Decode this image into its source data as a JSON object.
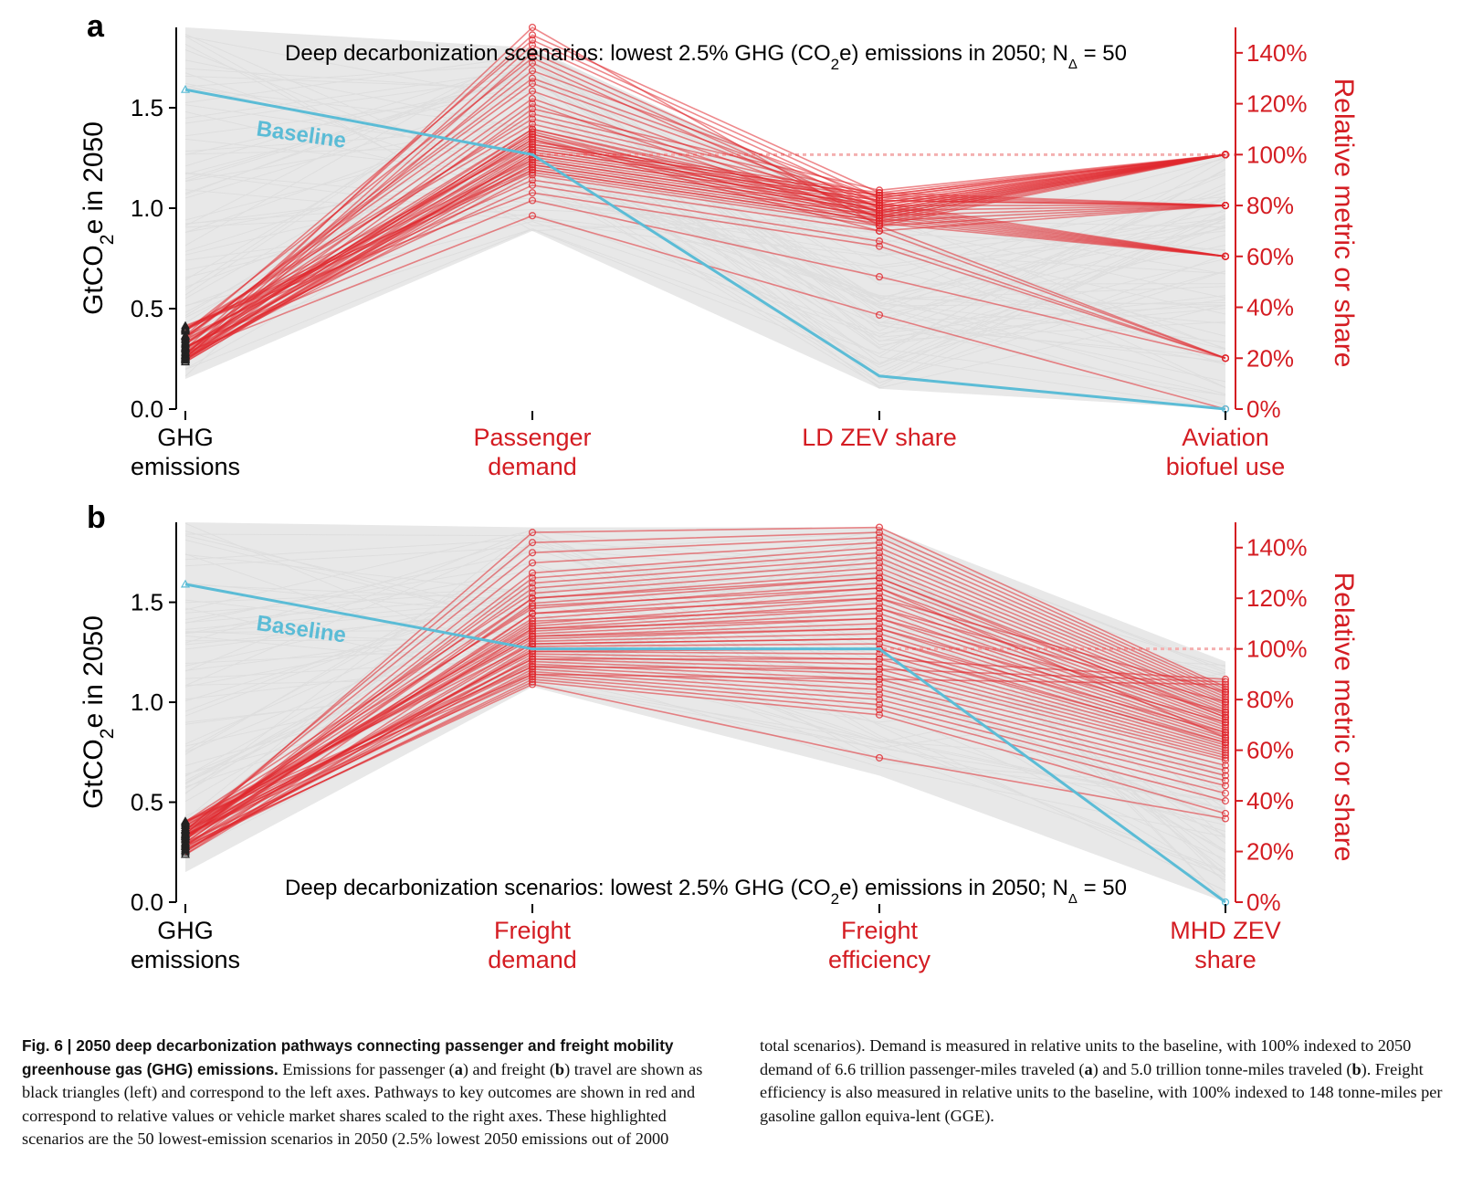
{
  "chart_data": [
    {
      "type": "parallel-coordinates",
      "panel_label": "a",
      "title_html": "Deep decarbonization scenarios: lowest 2.5% GHG (CO<tspan baseline-shift='sub' font-size='17'>2</tspan>e) emissions in 2050;  N<tspan baseline-shift='sub' font-size='15'>Δ</tspan> = 50",
      "title_position": "top",
      "left_axis_label": "GtCO2e in 2050",
      "right_axis_label": "Relative metric or share",
      "left_ticks": [
        "0.0",
        "0.5",
        "1.0",
        "1.5"
      ],
      "left_ylim": [
        0,
        1.9
      ],
      "right_ticks": [
        "0%",
        "20%",
        "40%",
        "60%",
        "80%",
        "100%",
        "120%",
        "140%"
      ],
      "right_ylim": [
        0,
        150
      ],
      "categories": [
        {
          "line1": "GHG",
          "line2": "emissions"
        },
        {
          "line1": "Passenger",
          "line2": "demand"
        },
        {
          "line1": "LD ZEV share",
          "line2": ""
        },
        {
          "line1": "Aviation",
          "line2": "biofuel use"
        }
      ],
      "baseline_label": "Baseline",
      "baseline": [
        1.59,
        100,
        13,
        0
      ],
      "ghg_range": [
        0.23,
        0.42
      ],
      "axis2_values": [
        76,
        82,
        85,
        88,
        90,
        92,
        93,
        94,
        95,
        96,
        97,
        98,
        99,
        100,
        101,
        102,
        103,
        104,
        105,
        106,
        107,
        108,
        109,
        110,
        112,
        114,
        116,
        118,
        120,
        122,
        125,
        128,
        130,
        133,
        136,
        138,
        140,
        143,
        145,
        147,
        150,
        94,
        96,
        98,
        100,
        102,
        104,
        106,
        108,
        110
      ],
      "axis3_values": [
        37,
        52,
        64,
        66,
        70,
        72,
        73,
        74,
        75,
        76,
        77,
        78,
        79,
        80,
        81,
        82,
        83,
        84,
        85,
        70,
        72,
        74,
        76,
        78,
        80,
        82,
        84,
        86,
        73,
        75,
        77,
        79,
        81,
        83,
        75,
        77,
        79,
        81,
        83,
        85,
        72,
        74,
        76,
        78,
        80,
        82,
        84,
        76,
        78,
        80
      ],
      "axis4_values": [
        0,
        20,
        20,
        20,
        20,
        20,
        60,
        60,
        60,
        60,
        60,
        60,
        60,
        60,
        60,
        80,
        80,
        80,
        80,
        80,
        80,
        80,
        80,
        80,
        80,
        80,
        100,
        100,
        100,
        100,
        100,
        100,
        100,
        100,
        100,
        100,
        100,
        100,
        100,
        100,
        100,
        100,
        100,
        100,
        100,
        100,
        100,
        100,
        100,
        100
      ],
      "gray_ranges": [
        [
          0.15,
          1.9
        ],
        [
          70,
          142
        ],
        [
          8,
          78
        ],
        [
          0,
          100
        ]
      ],
      "colors": {
        "highlight": "#e0282e",
        "baseline": "#5bbcd6",
        "background_lines": "#dcdcdc",
        "reference_line": "#f4b0b0",
        "right_axis": "#d41c22"
      }
    },
    {
      "type": "parallel-coordinates",
      "panel_label": "b",
      "title_html": "Deep decarbonization scenarios: lowest 2.5% GHG (CO<tspan baseline-shift='sub' font-size='17'>2</tspan>e) emissions in 2050;  N<tspan baseline-shift='sub' font-size='15'>Δ</tspan> = 50",
      "title_position": "bottom",
      "left_axis_label": "GtCO2e in 2050",
      "right_axis_label": "Relative metric or share",
      "left_ticks": [
        "0.0",
        "0.5",
        "1.0",
        "1.5"
      ],
      "left_ylim": [
        0,
        1.9
      ],
      "right_ticks": [
        "0%",
        "20%",
        "40%",
        "60%",
        "80%",
        "100%",
        "120%",
        "140%"
      ],
      "right_ylim": [
        0,
        150
      ],
      "categories": [
        {
          "line1": "GHG",
          "line2": "emissions"
        },
        {
          "line1": "Freight",
          "line2": "demand"
        },
        {
          "line1": "Freight",
          "line2": "efficiency"
        },
        {
          "line1": "MHD ZEV",
          "line2": "share"
        }
      ],
      "baseline_label": "Baseline",
      "baseline": [
        1.59,
        100,
        100,
        0
      ],
      "ghg_range": [
        0.23,
        0.42
      ],
      "axis2_values": [
        86,
        87,
        88,
        89,
        90,
        91,
        92,
        93,
        94,
        95,
        96,
        97,
        98,
        99,
        100,
        101,
        102,
        103,
        104,
        105,
        106,
        107,
        108,
        109,
        110,
        112,
        114,
        116,
        118,
        120,
        122,
        124,
        126,
        128,
        130,
        134,
        138,
        142,
        146,
        90,
        93,
        96,
        99,
        102,
        105,
        108,
        111,
        114,
        117,
        120
      ],
      "axis3_values": [
        57,
        74,
        76,
        78,
        80,
        82,
        84,
        86,
        88,
        90,
        92,
        94,
        96,
        98,
        100,
        102,
        104,
        106,
        108,
        110,
        112,
        114,
        116,
        118,
        120,
        122,
        124,
        126,
        128,
        130,
        132,
        134,
        136,
        138,
        140,
        142,
        144,
        146,
        148,
        88,
        92,
        96,
        100,
        104,
        108,
        112,
        116,
        120,
        124,
        128
      ],
      "axis4_values": [
        33,
        35,
        40,
        43,
        46,
        48,
        50,
        52,
        54,
        56,
        57,
        58,
        59,
        60,
        61,
        62,
        63,
        64,
        65,
        66,
        67,
        68,
        69,
        70,
        71,
        72,
        73,
        74,
        75,
        76,
        77,
        78,
        79,
        80,
        81,
        82,
        83,
        84,
        85,
        86,
        87,
        88,
        63,
        67,
        71,
        75,
        79,
        83,
        65,
        73
      ],
      "gray_ranges": [
        [
          0.15,
          1.9
        ],
        [
          85,
          148
        ],
        [
          50,
          148
        ],
        [
          0,
          95
        ]
      ],
      "colors": {
        "highlight": "#e0282e",
        "baseline": "#5bbcd6",
        "background_lines": "#dcdcdc",
        "reference_line": "#f4b0b0",
        "right_axis": "#d41c22"
      }
    }
  ],
  "caption": {
    "fig_label": "Fig. 6 | ",
    "bold_title": "2050 deep decarbonization pathways connecting passenger and freight mobility greenhouse gas (GHG) emissions.",
    "left_text_html": " Emissions for passenger (<b>a</b>) and freight (<b>b</b>) travel are shown as black triangles (left) and correspond to the left axes. Pathways to key outcomes are shown in red and correspond to relative values or vehicle market shares scaled to the right axes. These highlighted scenarios are the 50 lowest-emission scenarios in 2050 (2.5% lowest 2050 emissions out of 2000",
    "right_text_html": "total scenarios). Demand is measured in relative units to the baseline, with 100% indexed to 2050 demand of 6.6 trillion passenger-miles traveled (<b>a</b>) and 5.0 trillion tonne-miles traveled (<b>b</b>). Freight efficiency is also measured in relative units to the baseline, with 100% indexed to 148 tonne-miles per gasoline gallon equiva-lent (GGE)."
  }
}
